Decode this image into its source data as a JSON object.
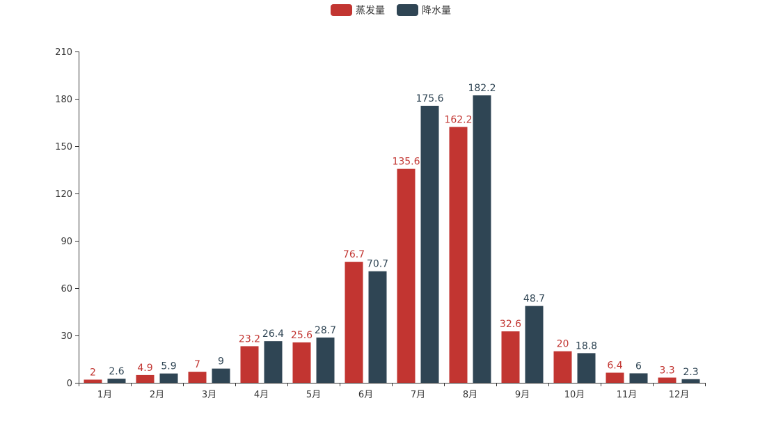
{
  "chart_data": {
    "type": "bar",
    "categories": [
      "1月",
      "2月",
      "3月",
      "4月",
      "5月",
      "6月",
      "7月",
      "8月",
      "9月",
      "10月",
      "11月",
      "12月"
    ],
    "series": [
      {
        "name": "蒸发量",
        "color": "#c23531",
        "values": [
          2,
          4.9,
          7,
          23.2,
          25.6,
          76.7,
          135.6,
          162.2,
          32.6,
          20,
          6.4,
          3.3
        ]
      },
      {
        "name": "降水量",
        "color": "#2f4554",
        "values": [
          2.6,
          5.9,
          9,
          26.4,
          28.7,
          70.7,
          175.6,
          182.2,
          48.7,
          18.8,
          6,
          2.3
        ]
      }
    ],
    "title": "",
    "xlabel": "",
    "ylabel": "",
    "ylim": [
      0,
      210
    ],
    "yticks": [
      0,
      30,
      60,
      90,
      120,
      150,
      180,
      210
    ],
    "legend": "top-center",
    "grid": false,
    "data_labels": true
  }
}
